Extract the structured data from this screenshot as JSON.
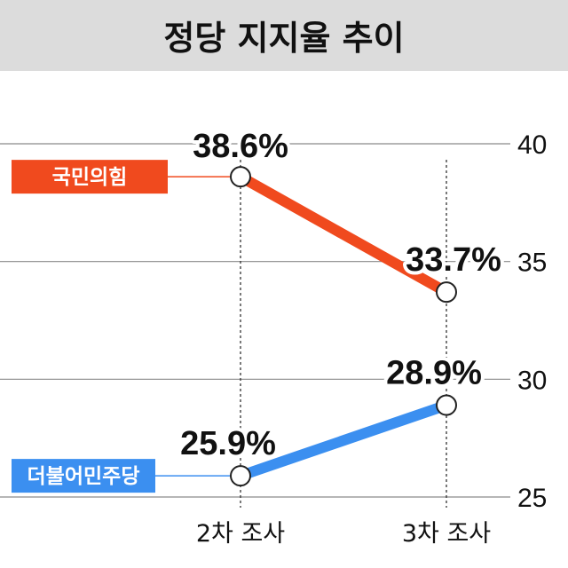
{
  "chart_data": {
    "type": "line",
    "title": "정당 지지율 추이",
    "categories": [
      "2차 조사",
      "3차 조사"
    ],
    "yticks": [
      40,
      35,
      30,
      25
    ],
    "ylim": [
      25,
      40
    ],
    "grid": true,
    "series": [
      {
        "name": "국민의힘",
        "values": [
          38.6,
          33.7
        ],
        "labels": [
          "38.6%",
          "33.7%"
        ],
        "color": "#f04a1e"
      },
      {
        "name": "더불어민주당",
        "values": [
          25.9,
          28.9
        ],
        "labels": [
          "25.9%",
          "28.9%"
        ],
        "color": "#3b8ff0"
      }
    ]
  }
}
